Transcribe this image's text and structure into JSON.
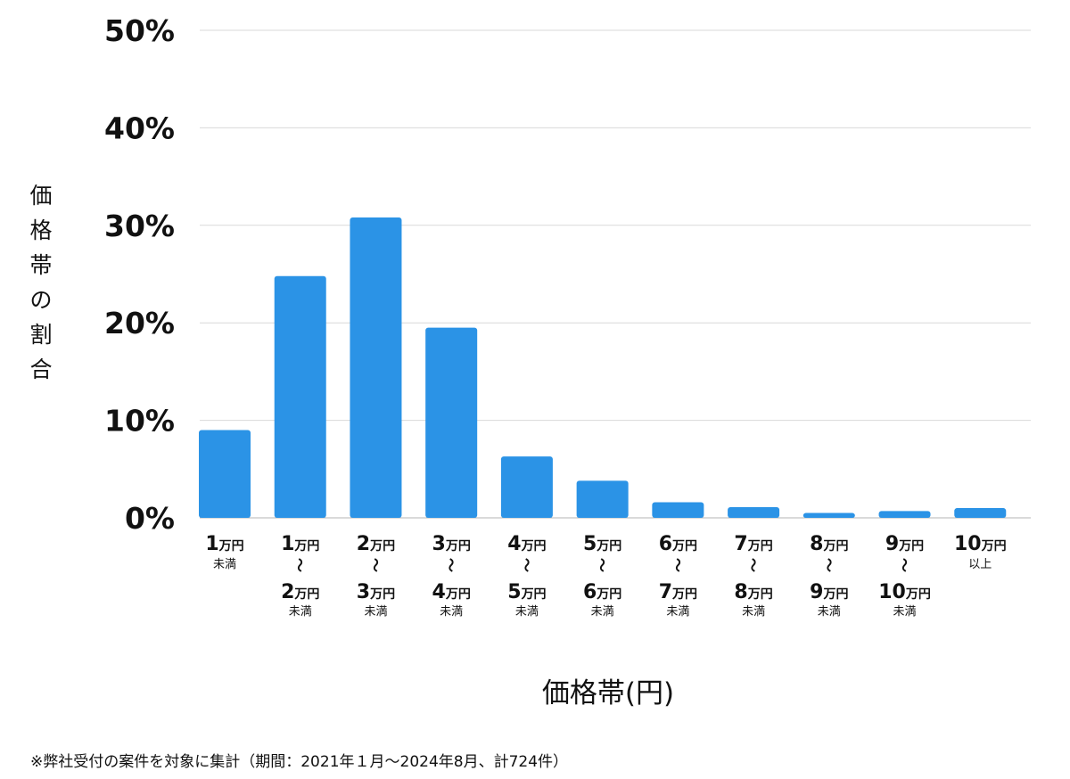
{
  "chart_data": {
    "type": "bar",
    "ylabel": "価格帯の割合",
    "xlabel": "価格帯(円)",
    "yticks": [
      "0%",
      "10%",
      "20%",
      "30%",
      "40%",
      "50%"
    ],
    "ylim": [
      0,
      50
    ],
    "grid": true,
    "bar_color": "#2b93e6",
    "grid_color": "#d9d9d9",
    "categories": [
      {
        "lines": [
          {
            "num": "1",
            "unit": "万円"
          }
        ],
        "suffix": "未満"
      },
      {
        "lines": [
          {
            "num": "1",
            "unit": "万円"
          },
          {
            "num": "2",
            "unit": "万円"
          }
        ],
        "suffix": "未満"
      },
      {
        "lines": [
          {
            "num": "2",
            "unit": "万円"
          },
          {
            "num": "3",
            "unit": "万円"
          }
        ],
        "suffix": "未満"
      },
      {
        "lines": [
          {
            "num": "3",
            "unit": "万円"
          },
          {
            "num": "4",
            "unit": "万円"
          }
        ],
        "suffix": "未満"
      },
      {
        "lines": [
          {
            "num": "4",
            "unit": "万円"
          },
          {
            "num": "5",
            "unit": "万円"
          }
        ],
        "suffix": "未満"
      },
      {
        "lines": [
          {
            "num": "5",
            "unit": "万円"
          },
          {
            "num": "6",
            "unit": "万円"
          }
        ],
        "suffix": "未満"
      },
      {
        "lines": [
          {
            "num": "6",
            "unit": "万円"
          },
          {
            "num": "7",
            "unit": "万円"
          }
        ],
        "suffix": "未満"
      },
      {
        "lines": [
          {
            "num": "7",
            "unit": "万円"
          },
          {
            "num": "8",
            "unit": "万円"
          }
        ],
        "suffix": "未満"
      },
      {
        "lines": [
          {
            "num": "8",
            "unit": "万円"
          },
          {
            "num": "9",
            "unit": "万円"
          }
        ],
        "suffix": "未満"
      },
      {
        "lines": [
          {
            "num": "9",
            "unit": "万円"
          },
          {
            "num": "10",
            "unit": "万円"
          }
        ],
        "suffix": "未満"
      },
      {
        "lines": [
          {
            "num": "10",
            "unit": "万円"
          }
        ],
        "suffix": "以上"
      }
    ],
    "values": [
      9.0,
      24.8,
      30.8,
      19.5,
      6.3,
      3.8,
      1.6,
      1.1,
      0.5,
      0.7,
      1.0
    ]
  },
  "footnote": "※弊社受付の案件を対象に集計（期間：2021年１月〜2024年8月、計724件）"
}
